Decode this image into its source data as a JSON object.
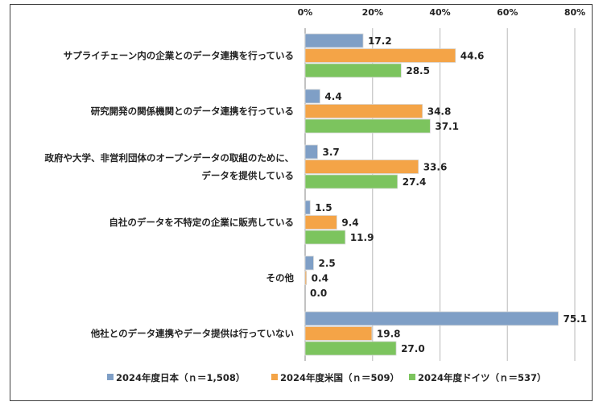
{
  "chart_data": {
    "type": "bar",
    "orientation": "horizontal",
    "title": "",
    "xlabel": "",
    "ylabel": "",
    "xlim": [
      0,
      80
    ],
    "x_ticks": [
      "0%",
      "20%",
      "40%",
      "60%",
      "80%"
    ],
    "x_tick_values": [
      0,
      20,
      40,
      60,
      80
    ],
    "grid": true,
    "legend_position": "bottom",
    "categories": [
      [
        "サプライチェーン内の企業とのデータ連携を行っている"
      ],
      [
        "研究開発の関係機関とのデータ連携を行っている"
      ],
      [
        "政府や大学、非営利団体のオープンデータの取組のために、",
        "データを提供している"
      ],
      [
        "自社のデータを不特定の企業に販売している"
      ],
      [
        "その他"
      ],
      [
        "他社とのデータ連携やデータ提供は行っていない"
      ]
    ],
    "series": [
      {
        "name": "2024年度日本（ｎ＝1,508）",
        "color": "#7f9fc6",
        "values": [
          17.2,
          4.4,
          3.7,
          1.5,
          2.5,
          75.1
        ],
        "labels": [
          "17.2",
          "4.4",
          "3.7",
          "1.5",
          "2.5",
          "75.1"
        ]
      },
      {
        "name": "2024年度米国（ｎ＝509）",
        "color": "#f4a447",
        "values": [
          44.6,
          34.8,
          33.6,
          9.4,
          0.4,
          19.8
        ],
        "labels": [
          "44.6",
          "34.8",
          "33.6",
          "9.4",
          "0.4",
          "19.8"
        ]
      },
      {
        "name": "2024年度ドイツ（ｎ＝537）",
        "color": "#7cc45e",
        "values": [
          28.5,
          37.1,
          27.4,
          11.9,
          0.0,
          27.0
        ],
        "labels": [
          "28.5",
          "37.1",
          "27.4",
          "11.9",
          "0.0",
          "27.0"
        ]
      }
    ]
  }
}
